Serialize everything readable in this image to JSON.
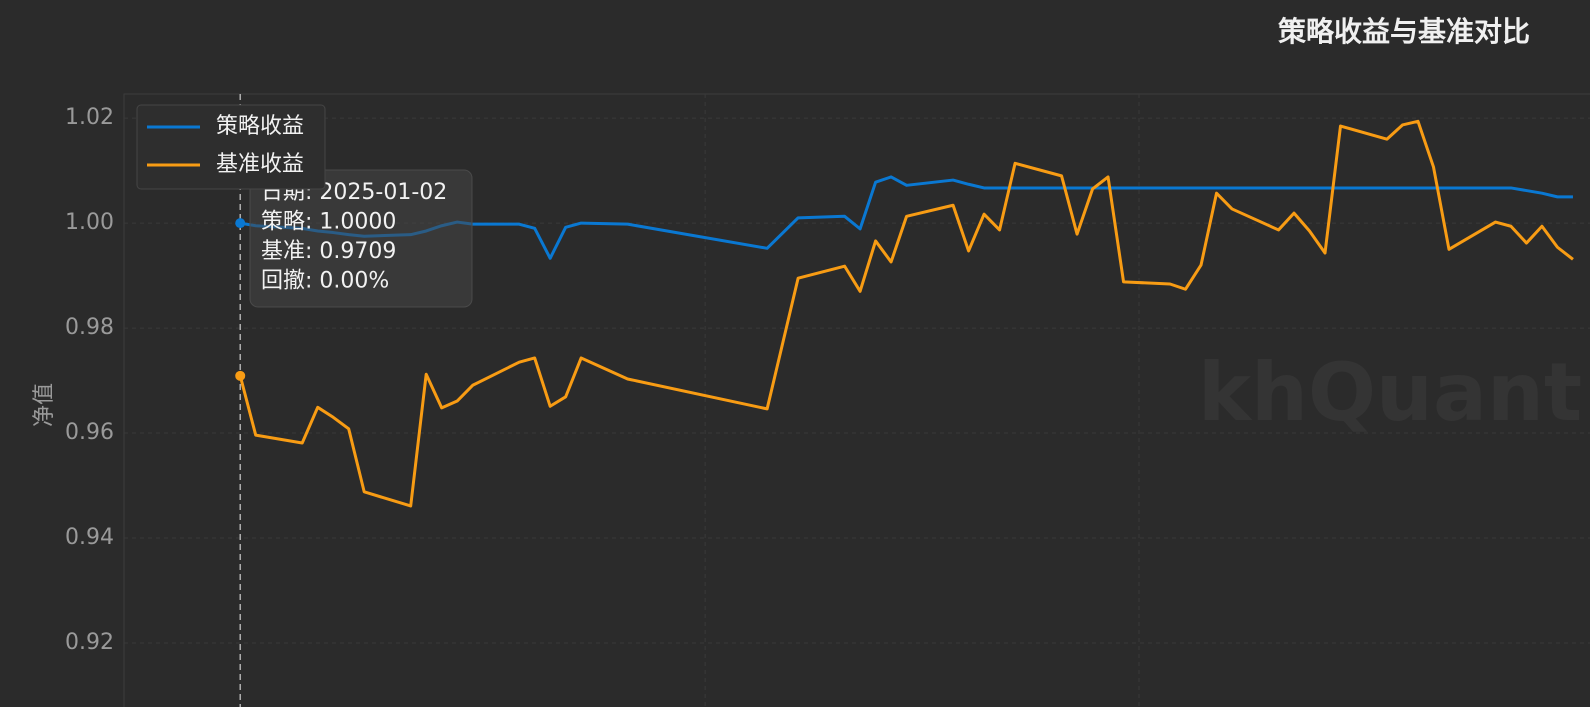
{
  "chart_data": {
    "type": "line",
    "title": "策略收益与基准对比",
    "y_label": "净值",
    "watermark": "khQuant",
    "x": [
      0,
      1,
      4,
      5,
      6,
      7,
      8,
      11,
      12,
      13,
      14,
      15,
      18,
      19,
      20,
      21,
      22,
      25,
      34,
      36,
      39,
      40,
      41,
      42,
      43,
      46,
      47,
      48,
      49,
      50,
      53,
      54,
      55,
      56,
      57,
      60,
      61,
      62,
      63,
      64,
      67,
      68,
      69,
      70,
      71,
      74,
      75,
      76,
      77,
      78,
      81,
      82,
      83,
      84,
      85,
      86
    ],
    "series": [
      {
        "name": "策略收益",
        "color": "#0a78d2",
        "values": [
          1.0,
          0.9995,
          0.999,
          0.9985,
          0.9982,
          0.9978,
          0.9975,
          0.9978,
          0.9985,
          0.9995,
          1.0002,
          0.9998,
          0.9998,
          0.999,
          0.9933,
          0.9992,
          1.0,
          0.9998,
          0.9952,
          1.001,
          1.0013,
          0.9989,
          1.0078,
          1.0088,
          1.0072,
          1.0082,
          1.0074,
          1.0067,
          1.0067,
          1.0067,
          1.0067,
          1.0067,
          1.0067,
          1.0067,
          1.0067,
          1.0067,
          1.0067,
          1.0067,
          1.0067,
          1.0067,
          1.0067,
          1.0067,
          1.0067,
          1.0067,
          1.0067,
          1.0067,
          1.0067,
          1.0067,
          1.0067,
          1.0067,
          1.0067,
          1.0067,
          1.0062,
          1.0057,
          1.005,
          1.005
        ]
      },
      {
        "name": "基准收益",
        "color": "#f89c14",
        "values": [
          0.9709,
          0.9596,
          0.9581,
          0.9649,
          0.963,
          0.9608,
          0.9488,
          0.9461,
          0.9712,
          0.9648,
          0.9661,
          0.9691,
          0.9735,
          0.9743,
          0.9651,
          0.9669,
          0.9743,
          0.9703,
          0.9646,
          0.9895,
          0.9918,
          0.987,
          0.9966,
          0.9926,
          1.0013,
          1.0034,
          0.9947,
          1.0017,
          0.9987,
          1.0114,
          1.009,
          0.9979,
          1.0065,
          1.0088,
          0.9888,
          0.9884,
          0.9874,
          0.992,
          1.0057,
          1.0027,
          0.9987,
          1.0019,
          0.9985,
          0.9943,
          1.0185,
          1.016,
          1.0187,
          1.0194,
          1.0107,
          0.995,
          1.0002,
          0.9994,
          0.9962,
          0.9994,
          0.9954,
          0.9931
        ]
      }
    ],
    "xlim": [
      -7.5,
      87.1
    ],
    "xticks": [
      30,
      58
    ],
    "ylim": [
      0.9078,
      1.0246
    ],
    "yticks": [
      0.92,
      0.94,
      0.96,
      0.98,
      {
        "value": 1.0,
        "label": "1.00"
      },
      1.02
    ],
    "grid": true,
    "legend": "upper left",
    "tooltip": [
      "日期: 2025-01-02",
      "策略: 1.0000",
      "基准: 0.9709",
      "回撤: 0.00%"
    ]
  }
}
